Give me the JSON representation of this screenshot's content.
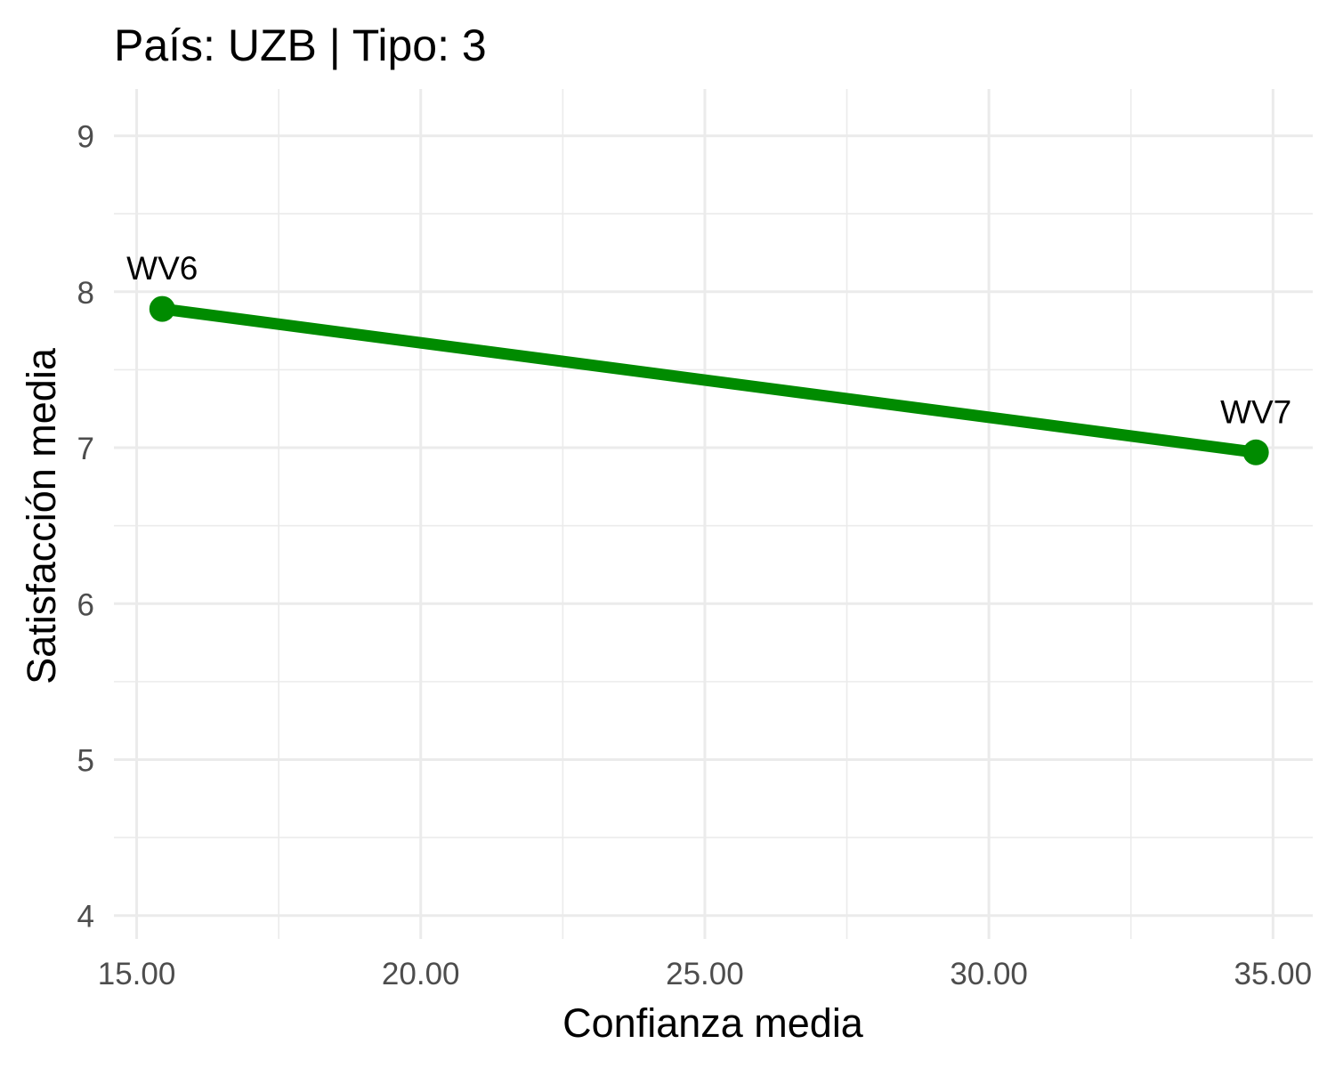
{
  "chart_data": {
    "type": "line",
    "title": "País: UZB | Tipo: 3",
    "xlabel": "Confianza media",
    "ylabel": "Satisfacción media",
    "xlim": [
      14.6,
      35.7
    ],
    "ylim": [
      3.85,
      9.3
    ],
    "x_ticks": [
      15,
      20,
      25,
      30,
      35
    ],
    "x_tick_labels": [
      "15.00",
      "20.00",
      "25.00",
      "30.00",
      "35.00"
    ],
    "y_ticks": [
      4,
      5,
      6,
      7,
      8,
      9
    ],
    "y_tick_labels": [
      "4",
      "5",
      "6",
      "7",
      "8",
      "9"
    ],
    "grid": true,
    "series": [
      {
        "color": "#008b00",
        "points": [
          {
            "label": "WV6",
            "x": 15.45,
            "y": 7.89
          },
          {
            "label": "WV7",
            "x": 34.7,
            "y": 6.97
          }
        ]
      }
    ]
  }
}
